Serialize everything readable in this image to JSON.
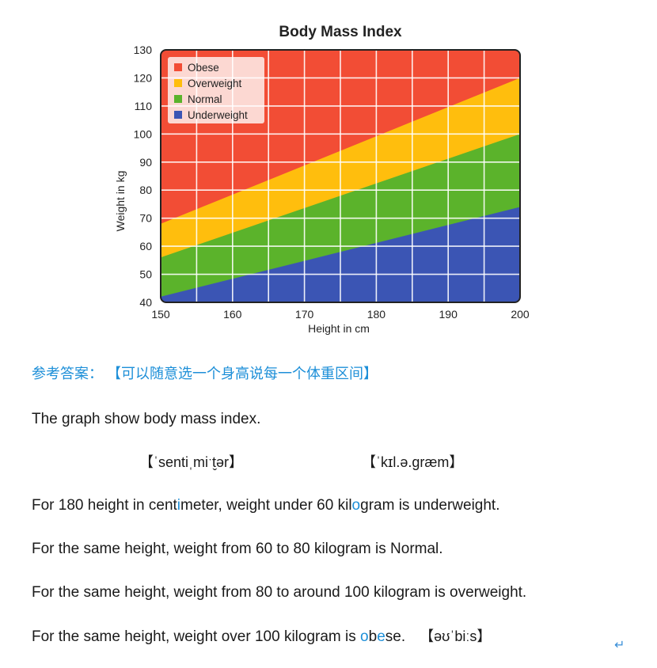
{
  "chart_data": {
    "type": "area",
    "title": "Body Mass Index",
    "xlabel": "Height in cm",
    "ylabel": "Weight in kg",
    "xlim": [
      150,
      200
    ],
    "ylim": [
      40,
      130
    ],
    "xticks": [
      "150",
      "160",
      "170",
      "180",
      "190",
      "200"
    ],
    "yticks": [
      "40",
      "50",
      "60",
      "70",
      "80",
      "90",
      "100",
      "110",
      "120",
      "130"
    ],
    "grid": true,
    "legend_position": "top-left",
    "boundaries": [
      {
        "between": [
          "Underweight",
          "Normal"
        ],
        "x": [
          150,
          200
        ],
        "y": [
          42,
          74
        ]
      },
      {
        "between": [
          "Normal",
          "Overweight"
        ],
        "x": [
          150,
          200
        ],
        "y": [
          56,
          100
        ]
      },
      {
        "between": [
          "Overweight",
          "Obese"
        ],
        "x": [
          150,
          200
        ],
        "y": [
          68,
          120
        ]
      }
    ],
    "series": [
      {
        "name": "Obese",
        "color": "#f24d35"
      },
      {
        "name": "Overweight",
        "color": "#ffbe0d"
      },
      {
        "name": "Normal",
        "color": "#5bb32b"
      },
      {
        "name": "Underweight",
        "color": "#3b55b4"
      }
    ]
  },
  "doc": {
    "answer_label": "参考答案：",
    "answer_note": "【可以随意选一个身高说每一个体重区间】",
    "intro": "The graph show body mass index.",
    "phonetic_1": "【ˈsentiˌmiˑt̬ər】",
    "phonetic_2": "【ˈkɪl.ə.græm】",
    "line1_a": "For 180 height in cent",
    "line1_b": "i",
    "line1_c": "meter, weight under 60 kil",
    "line1_d": "o",
    "line1_e": "gram is underweight.",
    "line2": "For the same height, weight from 60 to 80 kilogram is Normal.",
    "line3": "For the same height, weight from 80 to around 100 kilogram is overweight.",
    "line4_a": "For the same height, weight over 100 kilogram is ",
    "line4_b": "o",
    "line4_c": "b",
    "line4_d": "e",
    "line4_e": "se.",
    "phonetic_3": "【əʊˈbiːs】",
    "return_mark": "↵"
  }
}
